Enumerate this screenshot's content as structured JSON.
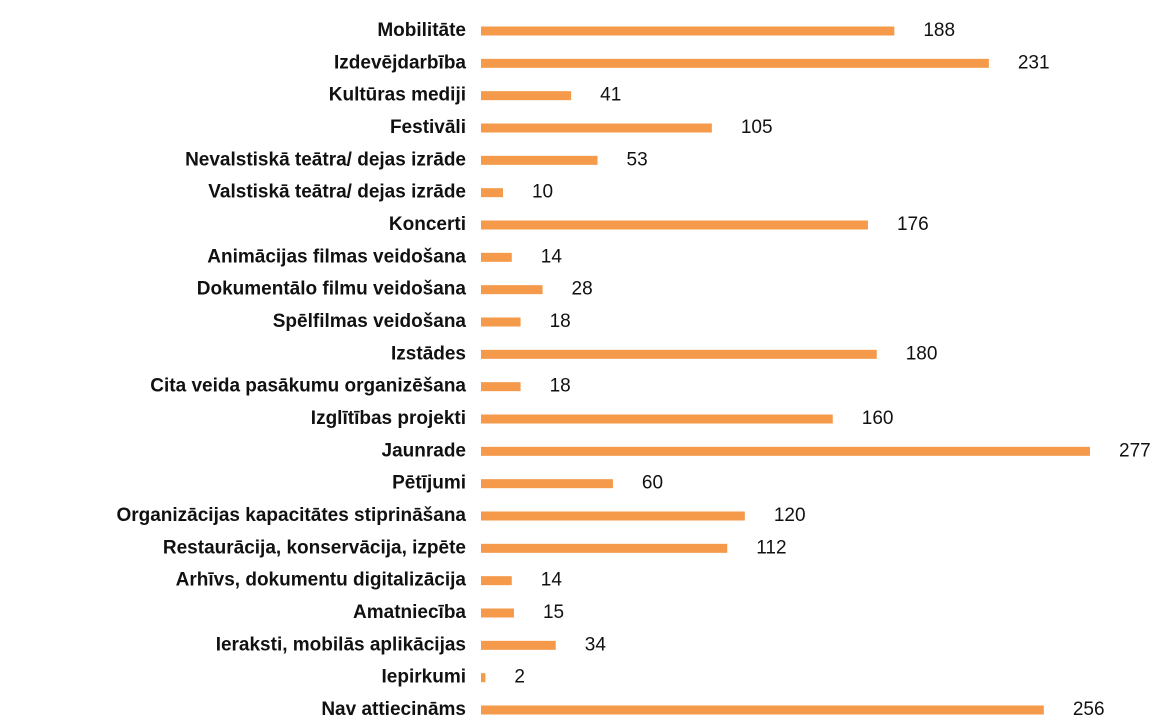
{
  "chart_data": {
    "type": "bar",
    "orientation": "horizontal",
    "color": "#f59a4a",
    "categories": [
      "Mobilitāte",
      "Izdevējdarbība",
      "Kultūras mediji",
      "Festivāli",
      "Nevalstiskā teātra/ dejas izrāde",
      "Valstiskā teātra/ dejas izrāde",
      "Koncerti",
      "Animācijas filmas veidošana",
      "Dokumentālo filmu veidošana",
      "Spēlfilmas veidošana",
      "Izstādes",
      "Cita veida pasākumu organizēšana",
      "Izglītības projekti",
      "Jaunrade",
      "Pētījumi",
      "Organizācijas kapacitātes stiprināšana",
      "Restaurācija, konservācija, izpēte",
      "Arhīvs, dokumentu digitalizācija",
      "Amatniecība",
      "Ieraksti, mobilās aplikācijas",
      "Iepirkumi",
      "Nav attiecināms"
    ],
    "values": [
      188,
      231,
      41,
      105,
      53,
      10,
      176,
      14,
      28,
      18,
      180,
      18,
      160,
      277,
      60,
      120,
      112,
      14,
      15,
      34,
      2,
      256
    ]
  }
}
